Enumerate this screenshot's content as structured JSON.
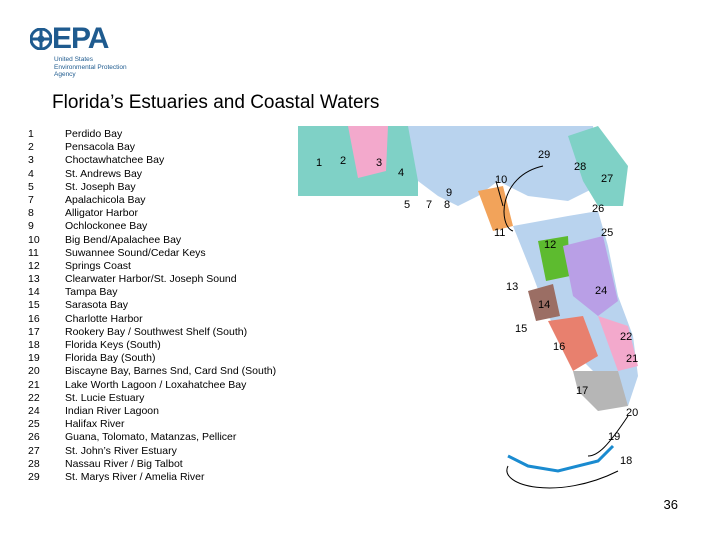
{
  "logo": {
    "brand": "EPA",
    "sub_lines": [
      "United States",
      "Environmental Protection",
      "Agency"
    ]
  },
  "title": "Florida’s Estuaries and Coastal Waters",
  "estuaries": [
    {
      "num": "1",
      "name": "Perdido Bay"
    },
    {
      "num": "2",
      "name": "Pensacola Bay"
    },
    {
      "num": "3",
      "name": "Choctawhatchee Bay"
    },
    {
      "num": "4",
      "name": "St. Andrews Bay"
    },
    {
      "num": "5",
      "name": "St. Joseph Bay"
    },
    {
      "num": "7",
      "name": "Apalachicola Bay"
    },
    {
      "num": "8",
      "name": "Alligator Harbor"
    },
    {
      "num": "9",
      "name": "Ochlockonee Bay"
    },
    {
      "num": "10",
      "name": "Big Bend/Apalachee Bay"
    },
    {
      "num": "11",
      "name": "Suwannee Sound/Cedar Keys"
    },
    {
      "num": "12",
      "name": "Springs Coast"
    },
    {
      "num": "13",
      "name": "Clearwater Harbor/St. Joseph Sound"
    },
    {
      "num": "14",
      "name": "Tampa Bay"
    },
    {
      "num": "15",
      "name": "Sarasota Bay"
    },
    {
      "num": "16",
      "name": "Charlotte Harbor"
    },
    {
      "num": "17",
      "name": "Rookery Bay / Southwest Shelf (South)"
    },
    {
      "num": "18",
      "name": "Florida Keys (South)"
    },
    {
      "num": "19",
      "name": "Florida Bay (South)"
    },
    {
      "num": "20",
      "name": "Biscayne Bay, Barnes Snd, Card Snd (South)"
    },
    {
      "num": "21",
      "name": "Lake Worth Lagoon / Loxahatchee Bay"
    },
    {
      "num": "22",
      "name": "St. Lucie Estuary"
    },
    {
      "num": "24",
      "name": "Indian River Lagoon"
    },
    {
      "num": "25",
      "name": "Halifax River"
    },
    {
      "num": "26",
      "name": "Guana, Tolomato, Matanzas, Pellicer"
    },
    {
      "num": "27",
      "name": "St. John’s River Estuary"
    },
    {
      "num": "28",
      "name": "Nassau River / Big Talbot"
    },
    {
      "num": "29",
      "name": "St. Marys River / Amelia River"
    }
  ],
  "map_labels": [
    "1",
    "2",
    "3",
    "4",
    "5",
    "7",
    "8",
    "9",
    "10",
    "11",
    "12",
    "13",
    "14",
    "15",
    "16",
    "17",
    "18",
    "19",
    "20",
    "21",
    "22",
    "24",
    "25",
    "26",
    "27",
    "28",
    "29"
  ],
  "colors": {
    "brand": "#1f5b8f",
    "land": "#b9d3ee",
    "teal": "#7fd1c6",
    "pink": "#f3a9cc",
    "orange": "#f2a35a",
    "purple": "#b99fe6",
    "green": "#5dbb2f",
    "brown": "#9b6e64",
    "salmon": "#e8806e",
    "grey": "#b6b6b6"
  },
  "page_number": "36"
}
